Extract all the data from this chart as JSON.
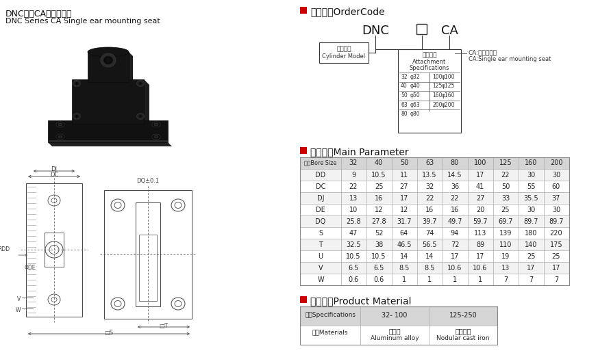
{
  "title_cn": "DNC系列CA单耳固定座",
  "title_en": "DNC Series CA Single ear mounting seat",
  "section1_title": "订货型号OrderCode",
  "section2_title": "主要参数Main Parameter",
  "section3_title": "产品材质Product Material",
  "order_code": {
    "dnc_label": "DNC",
    "ca_label": "CA",
    "box1_cn": "气缸型号",
    "box1_en": "Cylinder Model",
    "box2_cn": "附件规格",
    "box2_l1": "Attachment",
    "box2_l2": "Specifications",
    "ca_desc_cn": "CA:单耳固定座",
    "ca_desc_en": "CA:Single ear mounting seat",
    "specs_left": [
      "32",
      "40",
      "50",
      "63",
      "80"
    ],
    "specs_left_phi": [
      "φ32",
      "φ40",
      "φ50",
      "φ63",
      "φ80"
    ],
    "specs_right": [
      "100",
      "125",
      "160",
      "200"
    ],
    "specs_right_phi": [
      "φ100",
      "φ125",
      "φ160",
      "φ200"
    ]
  },
  "main_param": {
    "headers": [
      "缸径Bore Size",
      "32",
      "40",
      "50",
      "63",
      "80",
      "100",
      "125",
      "160",
      "200"
    ],
    "rows": [
      [
        "DD",
        "9",
        "10.5",
        "11",
        "13.5",
        "14.5",
        "17",
        "22",
        "30",
        "30"
      ],
      [
        "DC",
        "22",
        "25",
        "27",
        "32",
        "36",
        "41",
        "50",
        "55",
        "60"
      ],
      [
        "DJ",
        "13",
        "16",
        "17",
        "22",
        "22",
        "27",
        "33",
        "35.5",
        "37"
      ],
      [
        "DE",
        "10",
        "12",
        "12",
        "16",
        "16",
        "20",
        "25",
        "30",
        "30"
      ],
      [
        "DQ",
        "25.8",
        "27.8",
        "31.7",
        "39.7",
        "49.7",
        "59.7",
        "69.7",
        "89.7",
        "89.7"
      ],
      [
        "S",
        "47",
        "52",
        "64",
        "74",
        "94",
        "113",
        "139",
        "180",
        "220"
      ],
      [
        "T",
        "32.5",
        "38",
        "46.5",
        "56.5",
        "72",
        "89",
        "110",
        "140",
        "175"
      ],
      [
        "U",
        "10.5",
        "10.5",
        "14",
        "14",
        "17",
        "17",
        "19",
        "25",
        "25"
      ],
      [
        "V",
        "6.5",
        "6.5",
        "8.5",
        "8.5",
        "10.6",
        "10.6",
        "13",
        "17",
        "17"
      ],
      [
        "W",
        "0.6",
        "0.6",
        "1",
        "1",
        "1",
        "1",
        "7",
        "7",
        "7"
      ]
    ]
  },
  "material": {
    "headers": [
      "规格Specifications",
      "32- 100",
      "125-250"
    ],
    "row_label": "材质Materials",
    "row_val1_cn": "铝合金",
    "row_val1_en": "Aluminum alloy",
    "row_val2_cn": "球墨铸铁",
    "row_val2_en": "Nodular cast iron"
  },
  "colors": {
    "red_square": "#cc0000",
    "header_bg": "#dddddd",
    "bg": "#ffffff",
    "dark": "#1a1a1a",
    "line": "#444444",
    "table_line": "#999999"
  }
}
